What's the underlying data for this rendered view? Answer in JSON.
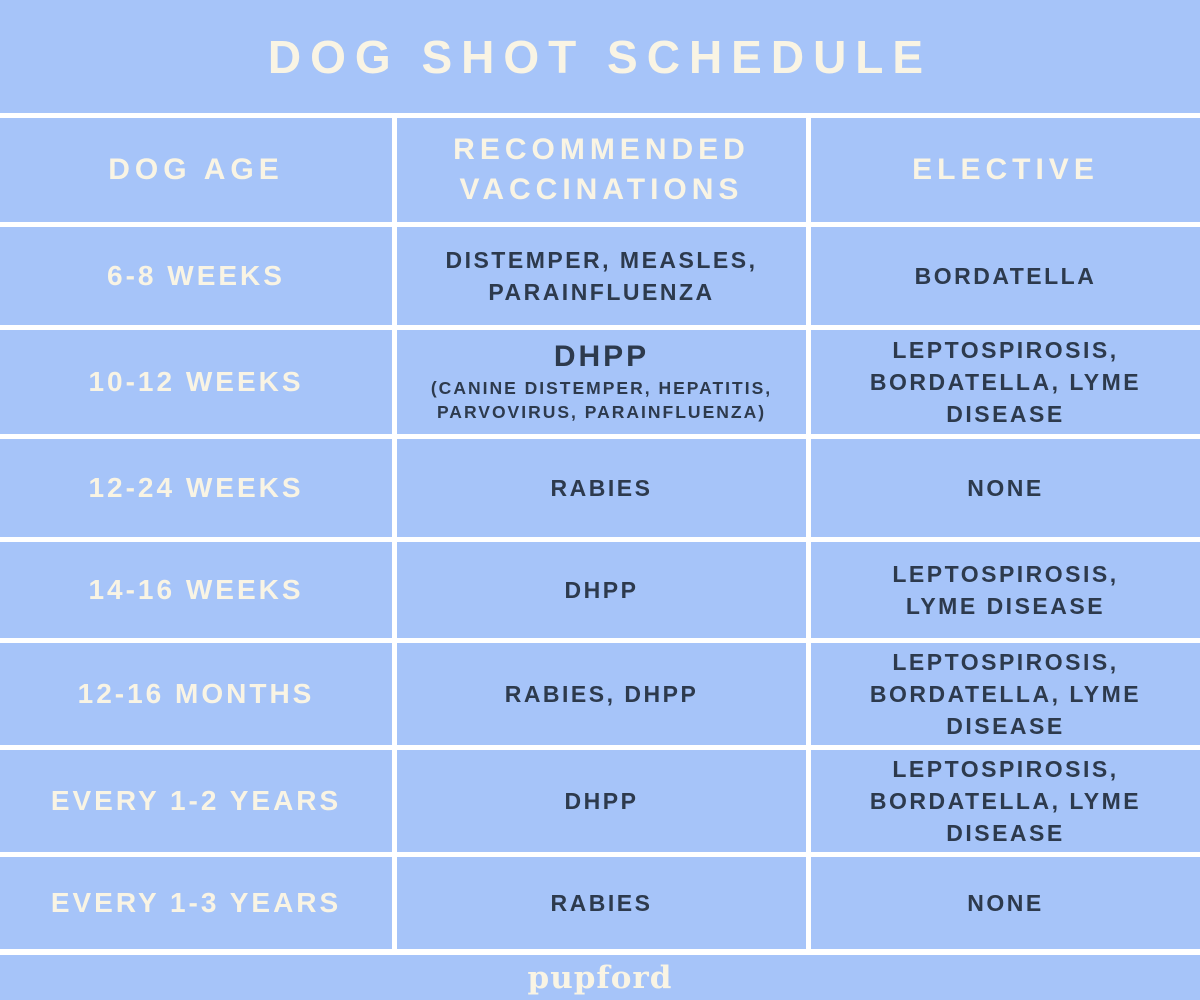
{
  "page": {
    "title": "DOG SHOT SCHEDULE",
    "brand": "pupford"
  },
  "colors": {
    "background_blue": "#a6c4f9",
    "grid_line": "#ffffff",
    "cream_text": "#f9f4e4",
    "dark_text": "#2d3a4d"
  },
  "table": {
    "headers": {
      "age": "DOG AGE",
      "recommended": "RECOMMENDED\nVACCINATIONS",
      "elective": "ELECTIVE"
    },
    "rows": [
      {
        "age": "6-8 WEEKS",
        "recommended": "DISTEMPER, MEASLES,\nPARAINFLUENZA",
        "elective": "BORDATELLA"
      },
      {
        "age": "10-12 WEEKS",
        "recommended_main": "DHPP",
        "recommended_note": "(CANINE DISTEMPER, HEPATITIS,\nPARVOVIRUS, PARAINFLUENZA)",
        "elective": "LEPTOSPIROSIS,\nBORDATELLA, LYME\nDISEASE"
      },
      {
        "age": "12-24 WEEKS",
        "recommended": "RABIES",
        "elective": "NONE"
      },
      {
        "age": "14-16 WEEKS",
        "recommended": "DHPP",
        "elective": "LEPTOSPIROSIS,\nLYME DISEASE"
      },
      {
        "age": "12-16 MONTHS",
        "recommended": "RABIES, DHPP",
        "elective": "LEPTOSPIROSIS,\nBORDATELLA, LYME\nDISEASE"
      },
      {
        "age": "EVERY 1-2 YEARS",
        "recommended": "DHPP",
        "elective": "LEPTOSPIROSIS,\nBORDATELLA, LYME\nDISEASE"
      },
      {
        "age": "EVERY 1-3 YEARS",
        "recommended": "RABIES",
        "elective": "NONE"
      }
    ]
  },
  "chart_data": {
    "type": "table",
    "title": "DOG SHOT SCHEDULE",
    "columns": [
      "DOG AGE",
      "RECOMMENDED VACCINATIONS",
      "ELECTIVE"
    ],
    "rows": [
      [
        "6-8 WEEKS",
        "DISTEMPER, MEASLES, PARAINFLUENZA",
        "BORDATELLA"
      ],
      [
        "10-12 WEEKS",
        "DHPP (CANINE DISTEMPER, HEPATITIS, PARVOVIRUS, PARAINFLUENZA)",
        "LEPTOSPIROSIS, BORDATELLA, LYME DISEASE"
      ],
      [
        "12-24 WEEKS",
        "RABIES",
        "NONE"
      ],
      [
        "14-16 WEEKS",
        "DHPP",
        "LEPTOSPIROSIS, LYME DISEASE"
      ],
      [
        "12-16 MONTHS",
        "RABIES, DHPP",
        "LEPTOSPIROSIS, BORDATELLA, LYME DISEASE"
      ],
      [
        "EVERY 1-2 YEARS",
        "DHPP",
        "LEPTOSPIROSIS, BORDATELLA, LYME DISEASE"
      ],
      [
        "EVERY 1-3 YEARS",
        "RABIES",
        "NONE"
      ]
    ],
    "layout": {
      "title_position": "top-center",
      "grid": "white 5px separators",
      "footer_brand": "pupford"
    }
  }
}
